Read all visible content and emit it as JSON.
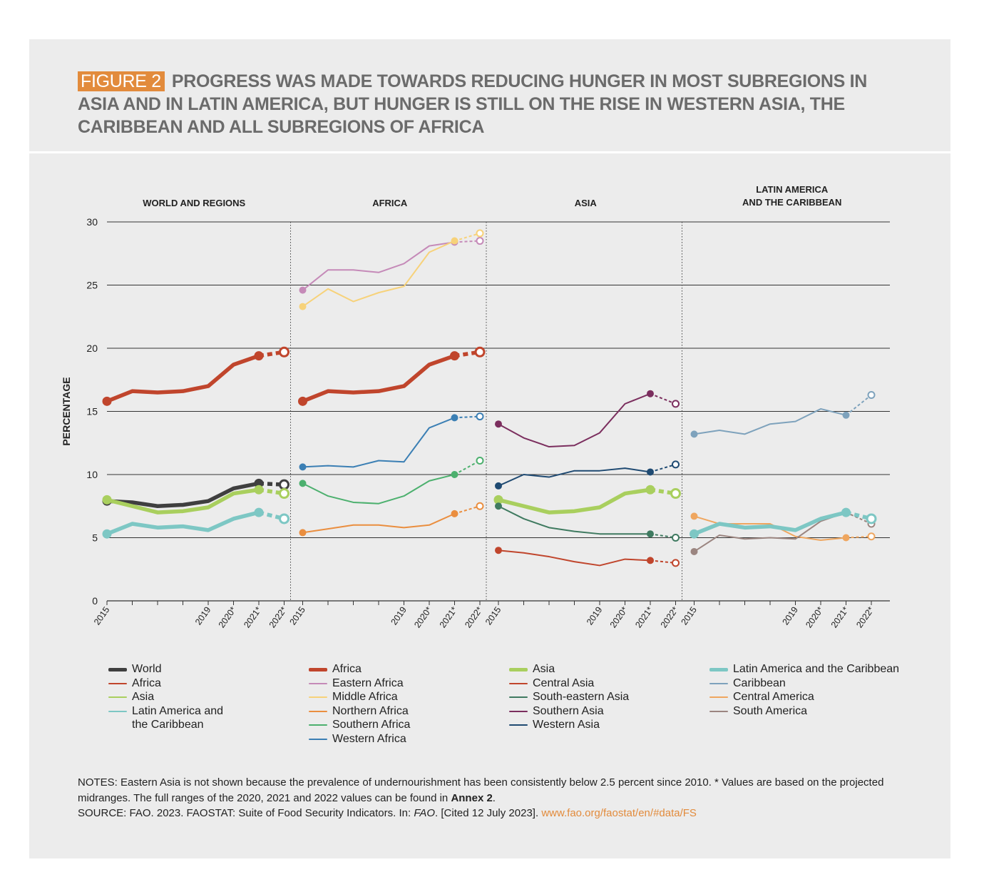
{
  "figure": {
    "badge": "FIGURE 2",
    "title": "PROGRESS WAS MADE TOWARDS REDUCING HUNGER IN MOST SUBREGIONS IN ASIA AND IN LATIN AMERICA, BUT HUNGER IS STILL ON THE RISE IN WESTERN ASIA, THE CARIBBEAN AND ALL SUBREGIONS OF AFRICA"
  },
  "colors": {
    "World": "#3f3f3f",
    "Africa": "#c0452c",
    "Asia": "#a9cf5e",
    "Latin America and the Caribbean": "#7dc7c4",
    "Eastern Africa": "#c58ab8",
    "Middle Africa": "#f7d27a",
    "Northern Africa": "#ea8e3f",
    "Southern Africa": "#4cb06e",
    "Western Africa": "#3b7fb4",
    "Central Asia": "#c0452c",
    "South-eastern Asia": "#3f7a60",
    "Southern Asia": "#7b2e5e",
    "Western Asia": "#1f4a72",
    "Caribbean": "#7ea2bc",
    "Central America": "#efa65f",
    "South America": "#9b8580",
    "badge": "#e28b3c",
    "panel_background": "#ececec"
  },
  "chart_data": {
    "type": "line",
    "ylabel": "PERCENTAGE",
    "ylim": [
      0,
      30
    ],
    "yticks": [
      0,
      5,
      10,
      15,
      20,
      25,
      30
    ],
    "x": [
      "2015",
      "2016",
      "2017",
      "2018",
      "2019",
      "2020*",
      "2021*",
      "2022*"
    ],
    "xtick_labels": [
      "2015",
      "2019",
      "2020*",
      "2021*",
      "2022*"
    ],
    "note": "2022* values are projections (dashed segments, open markers)",
    "panels": [
      {
        "id": "world",
        "title": "WORLD AND REGIONS",
        "series": [
          {
            "name": "World",
            "values": [
              7.9,
              7.8,
              7.5,
              7.6,
              7.9,
              8.9,
              9.3,
              9.2
            ],
            "bold": true
          },
          {
            "name": "Africa",
            "values": [
              15.8,
              16.6,
              16.5,
              16.6,
              17.0,
              18.7,
              19.4,
              19.7
            ],
            "bold": true
          },
          {
            "name": "Asia",
            "values": [
              8.0,
              7.5,
              7.0,
              7.1,
              7.4,
              8.5,
              8.8,
              8.5
            ],
            "bold": true
          },
          {
            "name": "Latin America and the Caribbean",
            "values": [
              5.3,
              6.1,
              5.8,
              5.9,
              5.6,
              6.5,
              7.0,
              6.5
            ],
            "bold": true
          }
        ]
      },
      {
        "id": "africa",
        "title": "AFRICA",
        "series": [
          {
            "name": "Eastern Africa",
            "values": [
              24.6,
              26.2,
              26.2,
              26.0,
              26.7,
              28.1,
              28.4,
              28.5
            ],
            "bold": false
          },
          {
            "name": "Middle Africa",
            "values": [
              23.3,
              24.7,
              23.7,
              24.4,
              24.9,
              27.6,
              28.5,
              29.1
            ],
            "bold": false
          },
          {
            "name": "Africa",
            "values": [
              15.8,
              16.6,
              16.5,
              16.6,
              17.0,
              18.7,
              19.4,
              19.7
            ],
            "bold": true
          },
          {
            "name": "Western Africa",
            "values": [
              10.6,
              10.7,
              10.6,
              11.1,
              11.0,
              13.7,
              14.5,
              14.6
            ],
            "bold": false
          },
          {
            "name": "Southern Africa",
            "values": [
              9.3,
              8.3,
              7.8,
              7.7,
              8.3,
              9.5,
              10.0,
              11.1
            ],
            "bold": false
          },
          {
            "name": "Northern Africa",
            "values": [
              5.4,
              5.7,
              6.0,
              6.0,
              5.8,
              6.0,
              6.9,
              7.5
            ],
            "bold": false
          }
        ]
      },
      {
        "id": "asia",
        "title": "ASIA",
        "series": [
          {
            "name": "Southern Asia",
            "values": [
              14.0,
              12.9,
              12.2,
              12.3,
              13.3,
              15.6,
              16.4,
              15.6
            ],
            "bold": false
          },
          {
            "name": "Western Asia",
            "values": [
              9.1,
              10.0,
              9.8,
              10.3,
              10.3,
              10.5,
              10.2,
              10.8
            ],
            "bold": false
          },
          {
            "name": "Asia",
            "values": [
              8.0,
              7.5,
              7.0,
              7.1,
              7.4,
              8.5,
              8.8,
              8.5
            ],
            "bold": true
          },
          {
            "name": "South-eastern Asia",
            "values": [
              7.5,
              6.5,
              5.8,
              5.5,
              5.3,
              5.3,
              5.3,
              5.0
            ],
            "bold": false
          },
          {
            "name": "Central Asia",
            "values": [
              4.0,
              3.8,
              3.5,
              3.1,
              2.8,
              3.3,
              3.2,
              3.0
            ],
            "bold": false
          }
        ]
      },
      {
        "id": "latam",
        "title_lines": [
          "LATIN AMERICA",
          "AND THE CARIBBEAN"
        ],
        "series": [
          {
            "name": "Caribbean",
            "values": [
              13.2,
              13.5,
              13.2,
              14.0,
              14.2,
              15.2,
              14.7,
              16.3
            ],
            "bold": false
          },
          {
            "name": "Central America",
            "values": [
              6.7,
              6.1,
              6.1,
              6.1,
              5.1,
              4.8,
              5.0,
              5.1
            ],
            "bold": false
          },
          {
            "name": "South America",
            "values": [
              3.9,
              5.2,
              4.9,
              5.0,
              4.9,
              6.3,
              7.0,
              6.1
            ],
            "bold": false
          },
          {
            "name": "Latin America and the Caribbean",
            "values": [
              5.3,
              6.1,
              5.8,
              5.9,
              5.6,
              6.5,
              7.0,
              6.5
            ],
            "bold": true
          }
        ]
      }
    ]
  },
  "legend": {
    "columns": [
      {
        "items": [
          {
            "label": "World",
            "key": "World",
            "bold": true
          },
          {
            "label": "Africa",
            "key": "Africa",
            "bold": false
          },
          {
            "label": "Asia",
            "key": "Asia",
            "bold": false
          },
          {
            "label": "Latin America and the Caribbean",
            "key": "Latin America and the Caribbean",
            "bold": false,
            "wrap": true
          }
        ]
      },
      {
        "items": [
          {
            "label": "Africa",
            "key": "Africa",
            "bold": true
          },
          {
            "label": "Eastern Africa",
            "key": "Eastern Africa",
            "bold": false
          },
          {
            "label": "Middle Africa",
            "key": "Middle Africa",
            "bold": false
          },
          {
            "label": "Northern Africa",
            "key": "Northern Africa",
            "bold": false
          },
          {
            "label": "Southern Africa",
            "key": "Southern Africa",
            "bold": false
          },
          {
            "label": "Western Africa",
            "key": "Western Africa",
            "bold": false
          }
        ]
      },
      {
        "items": [
          {
            "label": "Asia",
            "key": "Asia",
            "bold": true
          },
          {
            "label": "Central Asia",
            "key": "Central Asia",
            "bold": false
          },
          {
            "label": "South-eastern Asia",
            "key": "South-eastern Asia",
            "bold": false
          },
          {
            "label": "Southern Asia",
            "key": "Southern Asia",
            "bold": false
          },
          {
            "label": "Western Asia",
            "key": "Western Asia",
            "bold": false
          }
        ]
      },
      {
        "items": [
          {
            "label": "Latin America and the Caribbean",
            "key": "Latin America and the Caribbean",
            "bold": true
          },
          {
            "label": "Caribbean",
            "key": "Caribbean",
            "bold": false
          },
          {
            "label": "Central America",
            "key": "Central America",
            "bold": false
          },
          {
            "label": "South America",
            "key": "South America",
            "bold": false
          }
        ]
      }
    ]
  },
  "notes": {
    "line1_a": "NOTES: Eastern Asia is not shown because the prevalence of undernourishment has been consistently below 2.5 percent since 2010. * Values are based on the projected midranges. The full ranges of the 2020, 2021 and 2022 values can be found in ",
    "annex": "Annex 2",
    "line1_b": ".",
    "source_a": "SOURCE: FAO. 2023. FAOSTAT: Suite of Food Security Indicators. In: ",
    "source_italic": "FAO",
    "source_b": ". [Cited 12 July 2023]. ",
    "source_link": "www.fao.org/faostat/en/#data/FS"
  }
}
